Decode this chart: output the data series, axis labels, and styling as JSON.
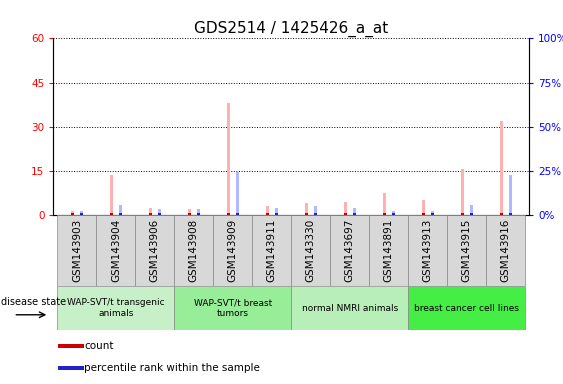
{
  "title": "GDS2514 / 1425426_a_at",
  "samples": [
    "GSM143903",
    "GSM143904",
    "GSM143906",
    "GSM143908",
    "GSM143909",
    "GSM143911",
    "GSM143330",
    "GSM143697",
    "GSM143891",
    "GSM143913",
    "GSM143915",
    "GSM143916"
  ],
  "value_absent_pink": [
    1.5,
    13.5,
    2.5,
    2.0,
    38.0,
    3.0,
    4.0,
    4.5,
    7.5,
    5.0,
    15.5,
    32.0
  ],
  "rank_absent_lightblue": [
    1.5,
    3.5,
    2.0,
    2.0,
    14.5,
    2.5,
    3.0,
    2.5,
    1.5,
    1.5,
    3.5,
    13.5
  ],
  "count_red": [
    1.0,
    1.0,
    1.0,
    1.0,
    1.0,
    1.0,
    1.0,
    1.0,
    1.0,
    1.0,
    1.0,
    1.0
  ],
  "rank_blue": [
    1.0,
    3.0,
    1.5,
    1.5,
    14.0,
    2.0,
    2.5,
    2.0,
    1.0,
    1.0,
    3.0,
    13.0
  ],
  "ylim_left": [
    0,
    60
  ],
  "ylim_right": [
    0,
    100
  ],
  "yticks_left": [
    0,
    15,
    30,
    45,
    60
  ],
  "ytick_labels_right": [
    "0%",
    "25%",
    "50%",
    "75%",
    "100%"
  ],
  "groups": [
    {
      "label": "WAP-SVT/t transgenic\nanimals",
      "indices": [
        0,
        1,
        2
      ],
      "color": "#c8f0c8"
    },
    {
      "label": "WAP-SVT/t breast\ntumors",
      "indices": [
        3,
        4,
        5
      ],
      "color": "#98ee98"
    },
    {
      "label": "normal NMRI animals",
      "indices": [
        6,
        7,
        8
      ],
      "color": "#b8f0b8"
    },
    {
      "label": "breast cancer cell lines",
      "indices": [
        9,
        10,
        11
      ],
      "color": "#44ee44"
    }
  ],
  "pink_color": "#ffb0b0",
  "lightblue_color": "#b0b8ff",
  "red_color": "#cc0000",
  "blue_color": "#2222cc",
  "gray_box_color": "#d8d8d8",
  "title_fontsize": 11,
  "tick_fontsize": 7.5
}
